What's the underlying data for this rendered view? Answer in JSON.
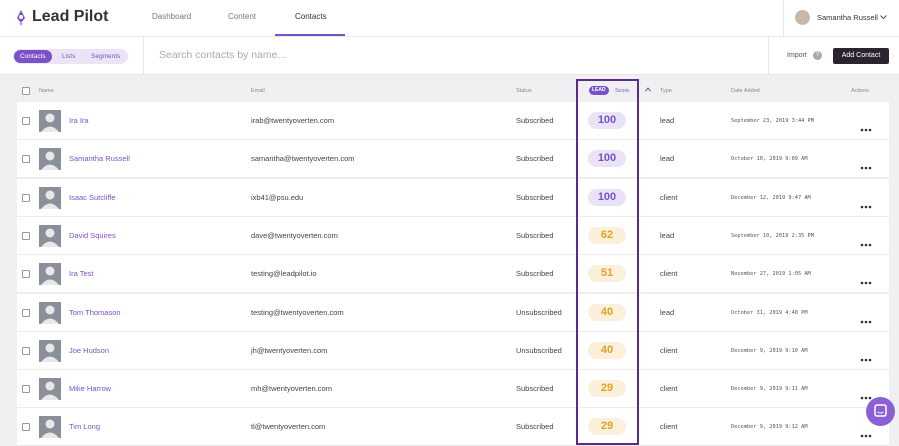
{
  "header": {
    "logo": "Lead Pilot",
    "tabs": [
      "Dashboard",
      "Content",
      "Contacts"
    ],
    "user": "Samantha Russell"
  },
  "toolbar": {
    "views": [
      "Contacts",
      "Lists",
      "Segments"
    ],
    "search_placeholder": "Search contacts by name...",
    "import": "Import",
    "help": "?",
    "add_button": "Add Contact"
  },
  "table": {
    "columns": {
      "name": "Name",
      "email": "Email",
      "status": "Status",
      "lead_badge": "LEAD",
      "score": "Score",
      "type": "Type",
      "date": "Date Added",
      "actions": "Actions"
    },
    "rows": [
      {
        "name": "Ira Ira",
        "email": "irab@twentyoverten.com",
        "status": "Subscribed",
        "score": 100,
        "score_color": "#7a52c7",
        "type": "lead",
        "date": "September 23, 2019 3:44 PM"
      },
      {
        "name": "Samantha Russell",
        "email": "samantha@twentyoverten.com",
        "status": "Subscribed",
        "score": 100,
        "score_color": "#7a52c7",
        "type": "lead",
        "date": "October 10, 2019 9:09 AM"
      },
      {
        "name": "Isaac Sutcliffe",
        "email": "ixb41@psu.edu",
        "status": "Subscribed",
        "score": 100,
        "score_color": "#7a52c7",
        "type": "client",
        "date": "December 12, 2019 9:47 AM"
      },
      {
        "name": "David Squires",
        "email": "dave@twentyoverten.com",
        "status": "Subscribed",
        "score": 62,
        "score_color": "#e8a020",
        "type": "lead",
        "date": "September 10, 2019 2:35 PM"
      },
      {
        "name": "Ira Test",
        "email": "testing@leadpilot.io",
        "status": "Subscribed",
        "score": 51,
        "score_color": "#e8a020",
        "type": "client",
        "date": "November 27, 2019 1:05 AM"
      },
      {
        "name": "Tom Thomason",
        "email": "testing@twentyoverten.com",
        "status": "Unsubscribed",
        "score": 40,
        "score_color": "#e8a020",
        "type": "lead",
        "date": "October 31, 2019 4:40 PM"
      },
      {
        "name": "Joe Hudson",
        "email": "jh@twentyoverten.com",
        "status": "Unsubscribed",
        "score": 40,
        "score_color": "#e8a020",
        "type": "client",
        "date": "December 9, 2019 9:10 AM"
      },
      {
        "name": "Mike Harrow",
        "email": "mh@twentyoverten.com",
        "status": "Subscribed",
        "score": 29,
        "score_color": "#e8a020",
        "type": "client",
        "date": "December 9, 2019 9:11 AM"
      },
      {
        "name": "Tim Long",
        "email": "tl@twentyoverten.com",
        "status": "Subscribed",
        "score": 29,
        "score_color": "#e8a020",
        "type": "client",
        "date": "December 9, 2019 9:12 AM"
      }
    ]
  }
}
